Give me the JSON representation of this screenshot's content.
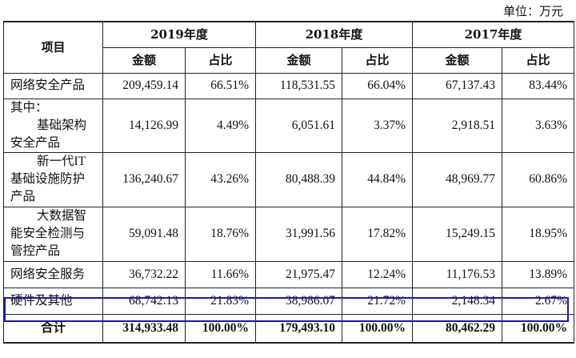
{
  "unit_label": "单位：万元",
  "headers": {
    "item": "项目",
    "years": [
      "2019年度",
      "2018年度",
      "2017年度"
    ],
    "amount": "金额",
    "ratio": "占比"
  },
  "rows": [
    {
      "label_lines": [
        "网络安全产品"
      ],
      "indent_lines": [],
      "values": [
        "209,459.14",
        "66.51%",
        "118,531.55",
        "66.04%",
        "67,137.43",
        "83.44%"
      ]
    },
    {
      "label_lines": [
        "其中："
      ],
      "indent_lines": [
        "基础架构"
      ],
      "tail_lines": [
        "安全产品"
      ],
      "values": [
        "14,126.99",
        "4.49%",
        "6,051.61",
        "3.37%",
        "2,918.51",
        "3.63%"
      ]
    },
    {
      "label_lines": [],
      "indent_lines": [
        "新一代IT"
      ],
      "tail_lines": [
        "基础设施防护",
        "产品"
      ],
      "values": [
        "136,240.67",
        "43.26%",
        "80,488.39",
        "44.84%",
        "48,969.77",
        "60.86%"
      ]
    },
    {
      "label_lines": [],
      "indent_lines": [
        "大数据智"
      ],
      "tail_lines": [
        "能安全检测与",
        "管控产品"
      ],
      "values": [
        "59,091.48",
        "18.76%",
        "31,991.56",
        "17.82%",
        "15,249.15",
        "18.95%"
      ]
    },
    {
      "label_lines": [
        "网络安全服务"
      ],
      "indent_lines": [],
      "values": [
        "36,732.22",
        "11.66%",
        "21,975.47",
        "12.24%",
        "11,176.53",
        "13.89%"
      ]
    },
    {
      "label_lines": [
        "硬件及其他"
      ],
      "indent_lines": [],
      "values": [
        "68,742.13",
        "21.83%",
        "38,986.07",
        "21.72%",
        "2,148.34",
        "2.67%"
      ]
    }
  ],
  "total": {
    "label": "合计",
    "values": [
      "314,933.48",
      "100.00%",
      "179,493.10",
      "100.00%",
      "80,462.29",
      "100.00%"
    ]
  },
  "highlight_color": "#1a1aa6"
}
